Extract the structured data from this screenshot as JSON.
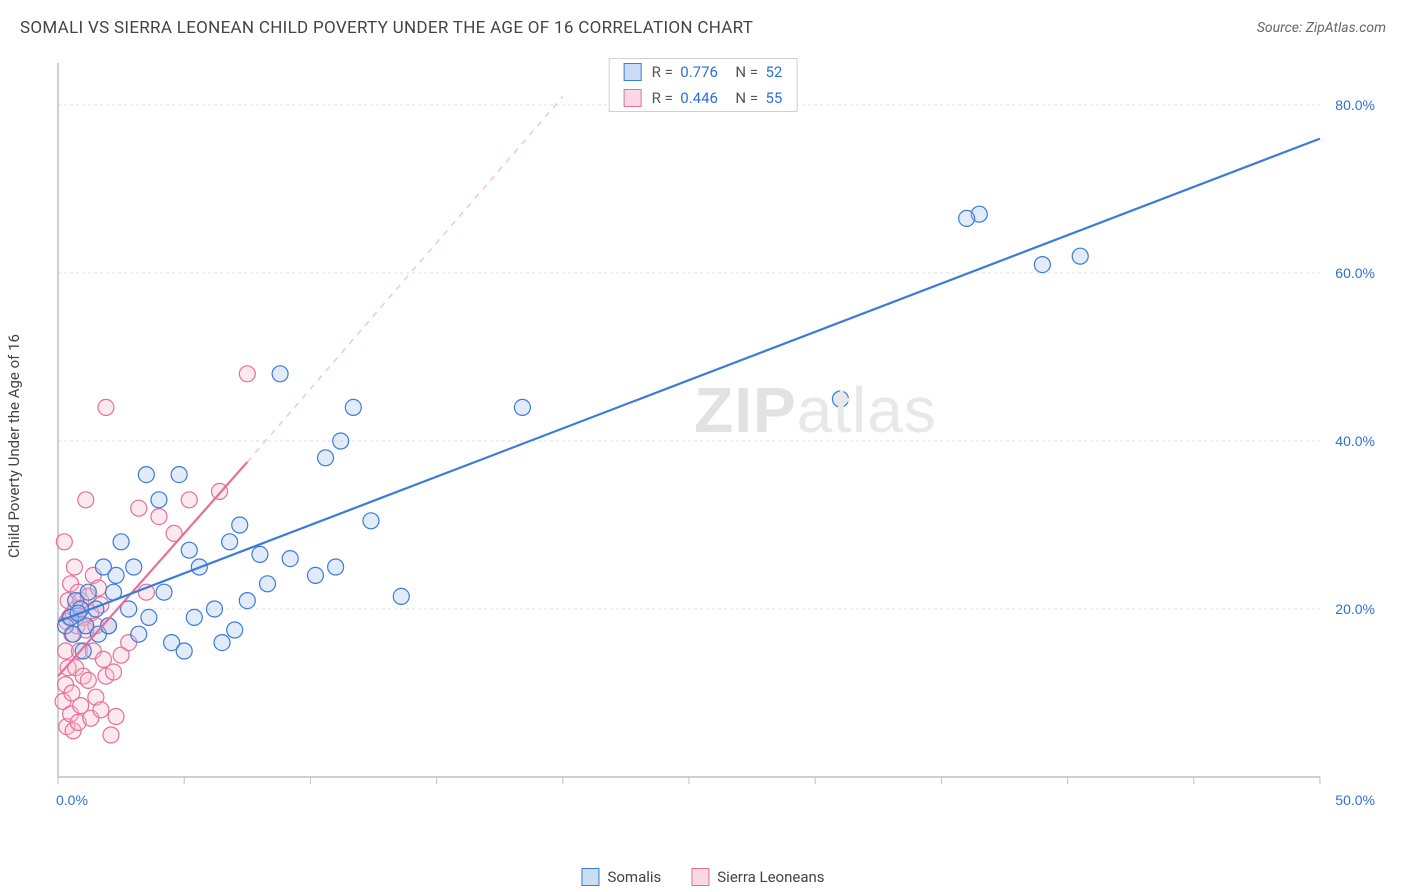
{
  "header": {
    "title": "SOMALI VS SIERRA LEONEAN CHILD POVERTY UNDER THE AGE OF 16 CORRELATION CHART",
    "source": "Source: ZipAtlas.com"
  },
  "chart": {
    "type": "scatter",
    "y_axis_label": "Child Poverty Under the Age of 16",
    "background_color": "#ffffff",
    "grid_color": "#dedede",
    "axis_line_color": "#bfbfbf",
    "tick_color": "#bfbfbf",
    "font_family": "Arial, sans-serif",
    "label_fontsize": 15,
    "tick_fontsize": 14,
    "tick_label_color": "#2d6fd8",
    "xlim": [
      0,
      50
    ],
    "ylim": [
      0,
      85
    ],
    "x_ticks": [
      0,
      5,
      10,
      15,
      20,
      25,
      30,
      35,
      40,
      45,
      50
    ],
    "x_tick_labels": [
      "0.0%",
      "",
      "",
      "",
      "",
      "",
      "",
      "",
      "",
      "",
      "50.0%"
    ],
    "y_ticks": [
      20,
      40,
      60,
      80
    ],
    "y_tick_labels": [
      "20.0%",
      "40.0%",
      "60.0%",
      "80.0%"
    ],
    "marker_radius": 8,
    "marker_fill_opacity": 0.35,
    "marker_stroke_width": 1.2,
    "trend_line_width": 2.2,
    "series": [
      {
        "id": "somalis",
        "label": "Somalis",
        "color_stroke": "#3b7bd9",
        "color_fill": "#a8c7ef",
        "R": "0.776",
        "N": "52",
        "trend": {
          "x1": 0,
          "y1": 18.5,
          "x2": 50,
          "y2": 76,
          "dash": false
        },
        "trend_ext": null,
        "points": [
          [
            0.3,
            18
          ],
          [
            0.5,
            19
          ],
          [
            0.7,
            21
          ],
          [
            0.6,
            17
          ],
          [
            0.9,
            20
          ],
          [
            1.0,
            15
          ],
          [
            1.2,
            22
          ],
          [
            1.1,
            18
          ],
          [
            0.8,
            19.5
          ],
          [
            1.5,
            20
          ],
          [
            1.6,
            17
          ],
          [
            1.8,
            25
          ],
          [
            2.0,
            18
          ],
          [
            2.2,
            22
          ],
          [
            2.5,
            28
          ],
          [
            2.3,
            24
          ],
          [
            2.8,
            20
          ],
          [
            3.0,
            25
          ],
          [
            3.2,
            17
          ],
          [
            3.5,
            36
          ],
          [
            3.6,
            19
          ],
          [
            4.0,
            33
          ],
          [
            4.2,
            22
          ],
          [
            4.5,
            16
          ],
          [
            4.8,
            36
          ],
          [
            5.0,
            15
          ],
          [
            5.2,
            27
          ],
          [
            5.4,
            19
          ],
          [
            5.6,
            25
          ],
          [
            6.2,
            20
          ],
          [
            6.5,
            16
          ],
          [
            6.8,
            28
          ],
          [
            7.0,
            17.5
          ],
          [
            7.2,
            30
          ],
          [
            7.5,
            21
          ],
          [
            8.0,
            26.5
          ],
          [
            8.3,
            23
          ],
          [
            8.8,
            48
          ],
          [
            9.2,
            26
          ],
          [
            10.2,
            24
          ],
          [
            10.6,
            38
          ],
          [
            11.0,
            25
          ],
          [
            11.2,
            40
          ],
          [
            11.7,
            44
          ],
          [
            12.4,
            30.5
          ],
          [
            13.6,
            21.5
          ],
          [
            18.4,
            44
          ],
          [
            36.5,
            67
          ],
          [
            39.0,
            61
          ],
          [
            31.0,
            45
          ],
          [
            40.5,
            62
          ],
          [
            36.0,
            66.5
          ]
        ]
      },
      {
        "id": "sierra_leoneans",
        "label": "Sierra Leoneans",
        "color_stroke": "#e66f9a",
        "color_fill": "#f6bfd2",
        "R": "0.446",
        "N": "55",
        "trend": {
          "x1": 0,
          "y1": 12,
          "x2": 7.5,
          "y2": 37.5,
          "dash": false
        },
        "trend_ext": {
          "x1": 7.5,
          "y1": 37.5,
          "x2": 20,
          "y2": 81,
          "dash": true
        },
        "points": [
          [
            0.2,
            9
          ],
          [
            0.25,
            28
          ],
          [
            0.3,
            11
          ],
          [
            0.3,
            15
          ],
          [
            0.35,
            18.5
          ],
          [
            0.35,
            6
          ],
          [
            0.4,
            21
          ],
          [
            0.4,
            13
          ],
          [
            0.45,
            19
          ],
          [
            0.5,
            23
          ],
          [
            0.5,
            7.5
          ],
          [
            0.55,
            17
          ],
          [
            0.55,
            10
          ],
          [
            0.6,
            19.5
          ],
          [
            0.6,
            5.5
          ],
          [
            0.65,
            25
          ],
          [
            0.7,
            13
          ],
          [
            0.7,
            20
          ],
          [
            0.75,
            18
          ],
          [
            0.8,
            6.5
          ],
          [
            0.8,
            22
          ],
          [
            0.85,
            15
          ],
          [
            0.9,
            21
          ],
          [
            0.9,
            8.5
          ],
          [
            1.0,
            19
          ],
          [
            1.0,
            12
          ],
          [
            1.1,
            17.5
          ],
          [
            1.1,
            33
          ],
          [
            1.2,
            11.5
          ],
          [
            1.2,
            21.5
          ],
          [
            1.3,
            19.5
          ],
          [
            1.3,
            7
          ],
          [
            1.4,
            24
          ],
          [
            1.4,
            15
          ],
          [
            1.5,
            18
          ],
          [
            1.5,
            9.5
          ],
          [
            1.6,
            22.5
          ],
          [
            1.7,
            8
          ],
          [
            1.7,
            20.5
          ],
          [
            1.8,
            14
          ],
          [
            1.9,
            12
          ],
          [
            1.9,
            44
          ],
          [
            2.0,
            18
          ],
          [
            2.1,
            5
          ],
          [
            2.2,
            12.5
          ],
          [
            2.3,
            7.2
          ],
          [
            2.5,
            14.5
          ],
          [
            2.8,
            16
          ],
          [
            3.2,
            32
          ],
          [
            3.5,
            22
          ],
          [
            4.0,
            31
          ],
          [
            4.6,
            29
          ],
          [
            5.2,
            33
          ],
          [
            6.4,
            34
          ],
          [
            7.5,
            48
          ]
        ]
      }
    ],
    "legend_top": [
      {
        "series_idx": 0
      },
      {
        "series_idx": 1
      }
    ],
    "legend_bottom": [
      {
        "series_idx": 0
      },
      {
        "series_idx": 1
      }
    ]
  },
  "watermark": {
    "text_bold": "ZIP",
    "text_rest": "atlas"
  }
}
